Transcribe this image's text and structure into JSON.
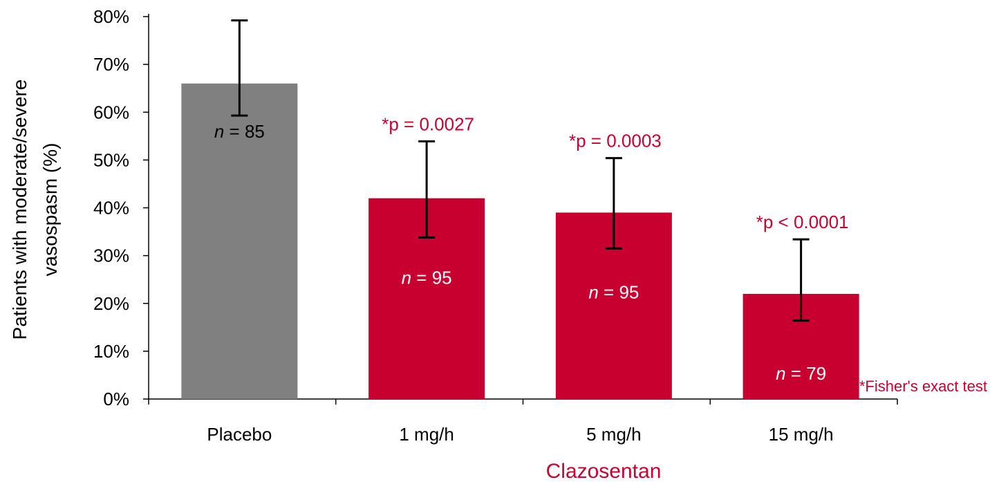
{
  "chart_data": {
    "type": "bar",
    "categories": [
      "Placebo",
      "1 mg/h",
      "5 mg/h",
      "15 mg/h"
    ],
    "values": [
      66,
      42,
      39,
      22
    ],
    "error_low": [
      59.3,
      33.8,
      31.5,
      16.4
    ],
    "error_high": [
      79.2,
      53.9,
      50.4,
      33.4
    ],
    "sample_sizes": [
      "85",
      "95",
      "95",
      "79"
    ],
    "n_prefix": "n",
    "n_equals": " = ",
    "p_values": [
      "",
      "*p = 0.0027",
      "*p = 0.0003",
      "*p < 0.0001"
    ],
    "bar_colors": [
      "#808080",
      "#c8002f",
      "#c8002f",
      "#c8002f"
    ],
    "n_label_colors": [
      "#000000",
      "#ffffff",
      "#ffffff",
      "#ffffff"
    ],
    "ylabel_line1": "Patients with moderate/severe",
    "ylabel_line2": "vasospasm (%)",
    "group_label": "Clazosentan",
    "footnote": "*Fisher's exact test",
    "ylim": [
      0,
      80
    ],
    "yticks": [
      0,
      10,
      20,
      30,
      40,
      50,
      60,
      70,
      80
    ],
    "ytick_labels": [
      "0%",
      "10%",
      "20%",
      "30%",
      "40%",
      "50%",
      "60%",
      "70%",
      "80%"
    ],
    "grid": false,
    "accent_color": "#c8002f"
  }
}
